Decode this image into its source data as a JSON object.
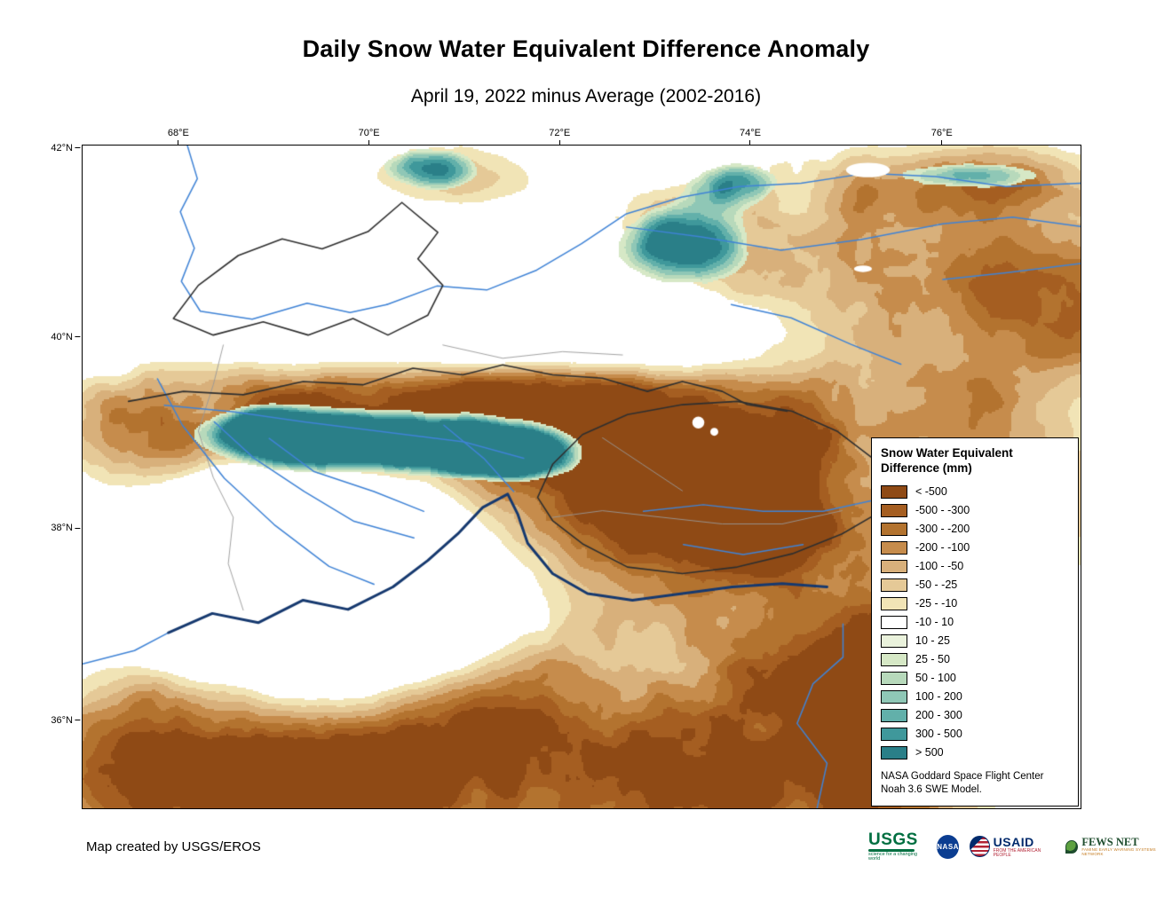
{
  "header": {
    "title": "Daily Snow Water Equivalent Difference Anomaly",
    "subtitle": "April 19, 2022 minus Average (2002-2016)"
  },
  "map": {
    "x_ticks": [
      "68°E",
      "70°E",
      "72°E",
      "74°E",
      "76°E"
    ],
    "y_ticks": [
      "42°N",
      "40°N",
      "38°N",
      "36°N"
    ],
    "colors": {
      "river": "#3f83d6",
      "major_river": "#16396f",
      "boundary": "#2f2f2f",
      "minor_boundary": "#999999",
      "background": "#ffffff"
    }
  },
  "legend": {
    "title_line1": "Snow Water Equivalent",
    "title_line2": "Difference (mm)",
    "entries": [
      {
        "label": "< -500",
        "color": "#8f4a15"
      },
      {
        "label": "-500 - -300",
        "color": "#a55e21"
      },
      {
        "label": "-300 - -200",
        "color": "#b3732f"
      },
      {
        "label": "-200 - -100",
        "color": "#c68c4c"
      },
      {
        "label": "-100 - -50",
        "color": "#d8b07b"
      },
      {
        "label": "-50 - -25",
        "color": "#e5c997"
      },
      {
        "label": "-25 - -10",
        "color": "#f1e4b6"
      },
      {
        "label": "-10 - 10",
        "color": "#ffffff"
      },
      {
        "label": "10 - 25",
        "color": "#eaf2dc"
      },
      {
        "label": "25 - 50",
        "color": "#d6e8c6"
      },
      {
        "label": "50 - 100",
        "color": "#b7d9bb"
      },
      {
        "label": "100 - 200",
        "color": "#8fc7b6"
      },
      {
        "label": "200 - 300",
        "color": "#62b0aa"
      },
      {
        "label": "300 - 500",
        "color": "#3f989b"
      },
      {
        "label": "> 500",
        "color": "#2a7f88"
      }
    ],
    "note_line1": "NASA Goddard Space Flight Center",
    "note_line2": "Noah 3.6 SWE Model."
  },
  "footer": {
    "credit": "Map created by USGS/EROS",
    "logos": {
      "usgs": {
        "name": "USGS",
        "tagline": "science for a changing world"
      },
      "nasa": {
        "name": "NASA"
      },
      "usaid": {
        "name": "USAID",
        "tagline": "FROM THE AMERICAN PEOPLE"
      },
      "fews": {
        "name": "FEWS NET",
        "tagline": "FAMINE EARLY WARNING SYSTEMS NETWORK"
      }
    }
  }
}
